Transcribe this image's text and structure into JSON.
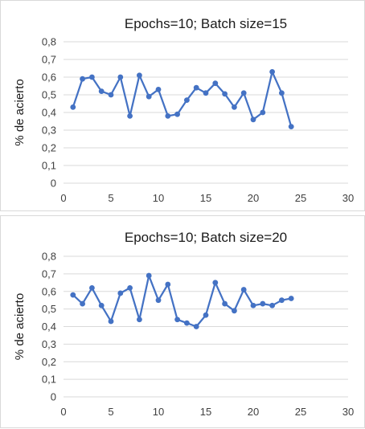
{
  "colors": {
    "series": "#4472c4",
    "grid": "#d9d9d9",
    "text": "#404040"
  },
  "chart_data": [
    {
      "type": "line",
      "title": "Epochs=10; Batch size=15",
      "xlabel": "",
      "ylabel": "% de acierto",
      "xlim": [
        0,
        30
      ],
      "ylim": [
        0,
        0.8
      ],
      "xticks": [
        0,
        5,
        10,
        15,
        20,
        25,
        30
      ],
      "xtick_labels": [
        "0",
        "5",
        "10",
        "15",
        "20",
        "25",
        "30"
      ],
      "yticks": [
        0,
        0.1,
        0.2,
        0.3,
        0.4,
        0.5,
        0.6,
        0.7,
        0.8
      ],
      "ytick_labels": [
        "0",
        "0,1",
        "0,2",
        "0,3",
        "0,4",
        "0,5",
        "0,6",
        "0,7",
        "0,8"
      ],
      "grid": "horizontal",
      "legend": "none",
      "series": [
        {
          "x": [
            1,
            2,
            3,
            4,
            5,
            6,
            7,
            8,
            9,
            10,
            11,
            12,
            13,
            14,
            15,
            16,
            17,
            18,
            19,
            20,
            21,
            22,
            23,
            24
          ],
          "y": [
            0.43,
            0.59,
            0.6,
            0.52,
            0.5,
            0.6,
            0.38,
            0.61,
            0.49,
            0.53,
            0.38,
            0.39,
            0.47,
            0.54,
            0.51,
            0.565,
            0.505,
            0.43,
            0.51,
            0.36,
            0.4,
            0.63,
            0.51,
            0.32
          ]
        }
      ]
    },
    {
      "type": "line",
      "title": "Epochs=10; Batch size=20",
      "xlabel": "",
      "ylabel": "% de acierto",
      "xlim": [
        0,
        30
      ],
      "ylim": [
        0,
        0.8
      ],
      "xticks": [
        0,
        5,
        10,
        15,
        20,
        25,
        30
      ],
      "xtick_labels": [
        "0",
        "5",
        "10",
        "15",
        "20",
        "25",
        "30"
      ],
      "yticks": [
        0,
        0.1,
        0.2,
        0.3,
        0.4,
        0.5,
        0.6,
        0.7,
        0.8
      ],
      "ytick_labels": [
        "0",
        "0,1",
        "0,2",
        "0,3",
        "0,4",
        "0,5",
        "0,6",
        "0,7",
        "0,8"
      ],
      "grid": "horizontal",
      "legend": "none",
      "series": [
        {
          "x": [
            1,
            2,
            3,
            4,
            5,
            6,
            7,
            8,
            9,
            10,
            11,
            12,
            13,
            14,
            15,
            16,
            17,
            18,
            19,
            20,
            21,
            22,
            23,
            24
          ],
          "y": [
            0.58,
            0.53,
            0.62,
            0.52,
            0.43,
            0.59,
            0.62,
            0.44,
            0.69,
            0.55,
            0.64,
            0.44,
            0.42,
            0.4,
            0.465,
            0.65,
            0.53,
            0.49,
            0.61,
            0.52,
            0.53,
            0.52,
            0.55,
            0.56
          ]
        }
      ]
    }
  ]
}
